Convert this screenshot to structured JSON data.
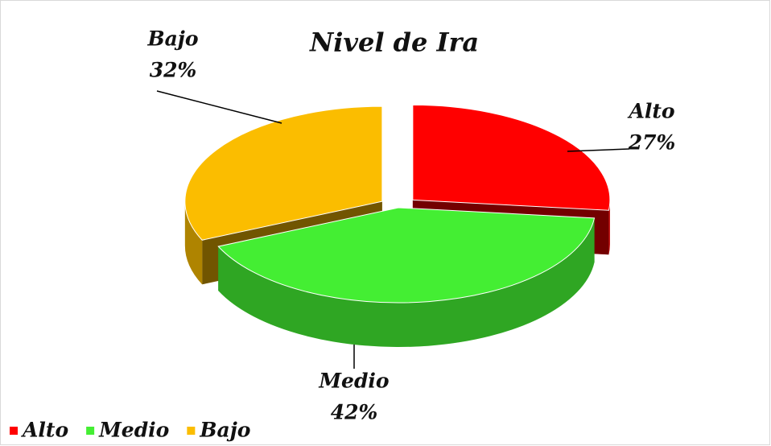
{
  "chart_data": {
    "type": "pie",
    "title": "Nivel de Ira",
    "categories": [
      "Alto",
      "Medio",
      "Bajo"
    ],
    "values": [
      27,
      42,
      32
    ],
    "value_labels": [
      "27%",
      "42%",
      "32%"
    ],
    "colors": [
      "#ff0000",
      "#44ee33",
      "#fbbd00"
    ],
    "legend": "bottom-left"
  }
}
